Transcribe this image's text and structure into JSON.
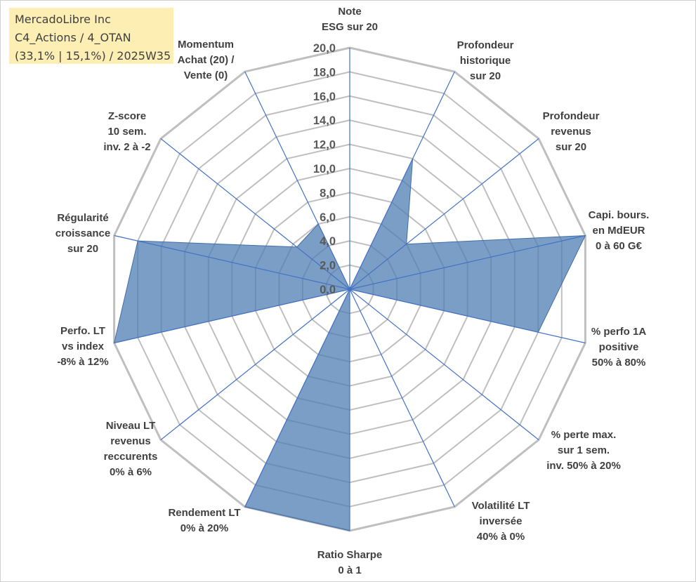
{
  "header": {
    "line1": "MercadoLibre Inc",
    "line2": "C4_Actions / 4_OTAN",
    "line3": "(33,1% | 15,1%) / 2025W35"
  },
  "colors": {
    "grid": "#bfbfbf",
    "spoke": "#4472c4",
    "fill": "#4f7db3",
    "title_bg": "#fdeeb4"
  },
  "chart_data": {
    "type": "radar",
    "title": "",
    "rmax": 20,
    "tick_step": 2,
    "tick_labels": [
      "0,0",
      "2,0",
      "4,0",
      "6,0",
      "8,0",
      "10,0",
      "12,0",
      "14,0",
      "16,0",
      "18,0",
      "20,0"
    ],
    "axes": [
      {
        "label": [
          "Note",
          "ESG sur 20"
        ],
        "value": 0
      },
      {
        "label": [
          "Profondeur",
          "historique",
          "sur 20"
        ],
        "value": 12
      },
      {
        "label": [
          "Profondeur",
          "revenus",
          "sur 20"
        ],
        "value": 6
      },
      {
        "label": [
          "Capi. bours.",
          "en MdEUR",
          "0 à 60 G€"
        ],
        "value": 20
      },
      {
        "label": [
          "% perfo 1A",
          "positive",
          "50% à 80%"
        ],
        "value": 16
      },
      {
        "label": [
          "% perte max.",
          "sur 1 sem.",
          "inv. 50% à 20%"
        ],
        "value": 0
      },
      {
        "label": [
          "Volatilité LT",
          "inversée",
          "40% à 0%"
        ],
        "value": 0
      },
      {
        "label": [
          "Ratio Sharpe",
          "0 à 1"
        ],
        "value": 20
      },
      {
        "label": [
          "Rendement LT",
          "0% à 20%"
        ],
        "value": 20
      },
      {
        "label": [
          "Niveau LT",
          "revenus",
          "reccurents",
          "0% à 6%"
        ],
        "value": 0
      },
      {
        "label": [
          "Perfo. LT",
          "vs index",
          "-8% à 12%"
        ],
        "value": 20
      },
      {
        "label": [
          "Régularité",
          "croissance",
          "sur 20"
        ],
        "value": 18
      },
      {
        "label": [
          "Z-score",
          "10 sem.",
          "inv. 2 à -2"
        ],
        "value": 5.6
      },
      {
        "label": [
          "Momentum",
          "Achat (20) /",
          "Vente (0)"
        ],
        "value": 6
      }
    ],
    "grid": true,
    "legend": "none"
  }
}
